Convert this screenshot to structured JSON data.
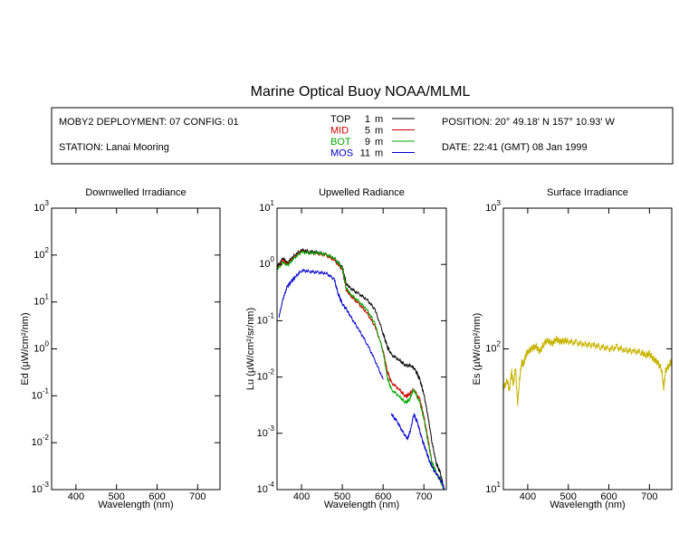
{
  "title": "Marine Optical Buoy NOAA/MLML",
  "info": {
    "deployment": "MOBY2 DEPLOYMENT: 07 CONFIG: 01",
    "station": "STATION: Lanai Mooring",
    "position": "POSITION: 20° 49.18' N   157° 10.93' W",
    "date": "DATE: 22:41 (GMT) 08 Jan 1999",
    "legend": [
      {
        "label": "TOP",
        "depth": "1",
        "unit": "m",
        "color": "#000000"
      },
      {
        "label": "MID",
        "depth": "5",
        "unit": "m",
        "color": "#cc0000"
      },
      {
        "label": "BOT",
        "depth": "9",
        "unit": "m",
        "color": "#00aa00"
      },
      {
        "label": "MOS",
        "depth": "11",
        "unit": "m",
        "color": "#0000cc"
      }
    ]
  },
  "chart_data": [
    {
      "type": "line",
      "title": "Downwelled Irradiance",
      "xlabel": "Wavelength (nm)",
      "ylabel": "Ed  (µW/cm²/nm)",
      "xlim": [
        340,
        755
      ],
      "ylim_exp": [
        -3,
        3
      ],
      "log_y": true,
      "x_ticks": [
        "400",
        "500",
        "600",
        "700"
      ],
      "series": []
    },
    {
      "type": "line",
      "title": "Upwelled Radiance",
      "xlabel": "Wavelength (nm)",
      "ylabel": "Lu  (µW/cm²/sr/nm)",
      "xlim": [
        340,
        755
      ],
      "ylim_exp": [
        -4,
        1
      ],
      "log_y": true,
      "x_ticks": [
        "400",
        "500",
        "600",
        "700"
      ],
      "series": [
        {
          "name": "TOP",
          "color": "#000000",
          "x": [
            340,
            355,
            365,
            380,
            400,
            420,
            440,
            460,
            480,
            500,
            510,
            520,
            540,
            560,
            580,
            600,
            610,
            620,
            640,
            655,
            670,
            680,
            690,
            700,
            710,
            720,
            730,
            740,
            750
          ],
          "y": [
            0.9,
            1.3,
            1.05,
            1.4,
            1.8,
            1.7,
            1.65,
            1.5,
            1.3,
            0.9,
            0.45,
            0.38,
            0.3,
            0.24,
            0.16,
            0.06,
            0.035,
            0.025,
            0.02,
            0.016,
            0.016,
            0.013,
            0.009,
            0.005,
            0.002,
            0.0007,
            0.0003,
            0.0002,
            0.0001
          ]
        },
        {
          "name": "MID",
          "color": "#cc0000",
          "x": [
            340,
            355,
            365,
            380,
            400,
            420,
            440,
            460,
            480,
            500,
            510,
            520,
            540,
            560,
            580,
            600,
            610,
            620,
            640,
            655,
            665,
            675,
            690,
            700,
            710,
            720,
            730,
            740,
            750
          ],
          "y": [
            0.85,
            1.2,
            1.0,
            1.3,
            1.7,
            1.6,
            1.55,
            1.45,
            1.2,
            0.8,
            0.35,
            0.28,
            0.2,
            0.14,
            0.08,
            0.03,
            0.013,
            0.008,
            0.006,
            0.0045,
            0.005,
            0.006,
            0.004,
            0.002,
            0.0008,
            0.0003,
            0.0002,
            0.00015,
            0.0001
          ]
        },
        {
          "name": "BOT",
          "color": "#00aa00",
          "x": [
            340,
            355,
            365,
            380,
            400,
            420,
            440,
            460,
            480,
            500,
            510,
            520,
            540,
            560,
            580,
            600,
            610,
            620,
            640,
            655,
            665,
            675,
            690,
            700,
            710,
            720,
            730,
            740,
            750
          ],
          "y": [
            0.8,
            1.1,
            0.95,
            1.25,
            1.65,
            1.6,
            1.6,
            1.5,
            1.3,
            0.85,
            0.38,
            0.3,
            0.22,
            0.16,
            0.09,
            0.028,
            0.01,
            0.006,
            0.0045,
            0.0035,
            0.004,
            0.006,
            0.0035,
            0.0018,
            0.0007,
            0.0003,
            0.0002,
            0.00015,
            0.0001
          ]
        },
        {
          "name": "MOS",
          "color": "#0000cc",
          "x": [
            345,
            355,
            365,
            375,
            385,
            400,
            420,
            440,
            460,
            480,
            490,
            500,
            510,
            520,
            540,
            560,
            580,
            600
          ],
          "y": [
            0.12,
            0.25,
            0.4,
            0.5,
            0.6,
            0.78,
            0.75,
            0.72,
            0.7,
            0.55,
            0.3,
            0.2,
            0.16,
            0.12,
            0.07,
            0.04,
            0.02,
            0.009
          ],
          "x2": [
            620,
            635,
            650,
            660,
            668,
            675,
            685,
            695,
            705,
            715,
            725,
            735,
            745,
            750
          ],
          "y2": [
            0.0022,
            0.0016,
            0.001,
            0.0008,
            0.0012,
            0.0022,
            0.0015,
            0.0008,
            0.0005,
            0.0003,
            0.00022,
            0.00017,
            0.00013,
            0.0001
          ]
        }
      ]
    },
    {
      "type": "line",
      "title": "Surface Irradiance",
      "xlabel": "Wavelength (nm)",
      "ylabel": "Es  (µW/cm²/nm)",
      "xlim": [
        340,
        755
      ],
      "ylim_exp": [
        1,
        3
      ],
      "log_y": true,
      "x_ticks": [
        "400",
        "500",
        "600",
        "700"
      ],
      "series": [
        {
          "name": "Es",
          "color": "#c8b400",
          "x": [
            340,
            350,
            355,
            360,
            365,
            370,
            375,
            380,
            385,
            390,
            395,
            400,
            410,
            420,
            430,
            440,
            450,
            460,
            470,
            480,
            490,
            500,
            520,
            540,
            560,
            580,
            600,
            620,
            640,
            660,
            680,
            690,
            700,
            710,
            720,
            730,
            735,
            740,
            750,
            755
          ],
          "y": [
            52,
            60,
            50,
            70,
            55,
            75,
            40,
            60,
            80,
            78,
            90,
            95,
            100,
            105,
            95,
            110,
            115,
            108,
            118,
            112,
            115,
            113,
            110,
            108,
            106,
            104,
            100,
            102,
            98,
            96,
            95,
            90,
            92,
            85,
            80,
            72,
            52,
            70,
            78,
            82
          ]
        }
      ]
    }
  ]
}
